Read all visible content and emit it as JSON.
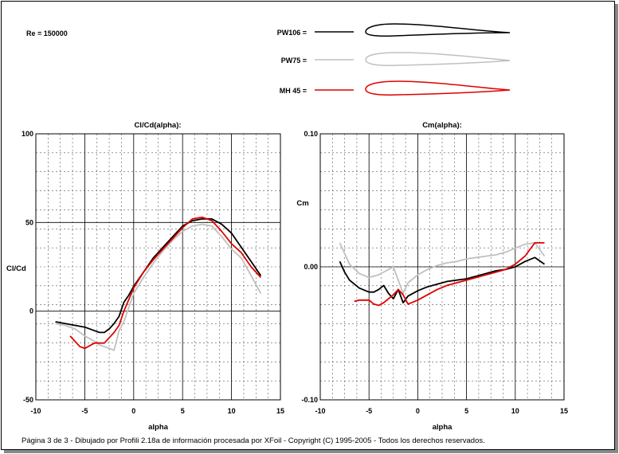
{
  "re_label": "Re = 150000",
  "legend": [
    {
      "label": "PW106 =",
      "color": "#000000"
    },
    {
      "label": "PW75 =",
      "color": "#c0c0c0"
    },
    {
      "label": "MH 45 =",
      "color": "#e00000"
    }
  ],
  "footer": "Página 3 de 3 - Dibujado por Profili 2.18a de información procesada por XFoil - Copyright (C) 1995-2005 - Todos los derechos reservados.",
  "chart_data": [
    {
      "type": "line",
      "title": "Cl/Cd(alpha):",
      "xlabel": "alpha",
      "ylabel": "Cl/Cd",
      "xlim": [
        -10,
        15
      ],
      "ylim": [
        -50,
        100
      ],
      "xticks": [
        "-10",
        "-5",
        "0",
        "5",
        "10",
        "15"
      ],
      "yticks": [
        "100",
        "50",
        "0",
        "-50"
      ],
      "grid": true,
      "series": [
        {
          "color": "#000000",
          "x": [
            -8,
            -7,
            -6,
            -5,
            -4,
            -3.5,
            -3,
            -2.5,
            -2,
            -1.5,
            -1,
            -0.5,
            0,
            1,
            2,
            3,
            4,
            5,
            6,
            7,
            8,
            9,
            10,
            11,
            12,
            13
          ],
          "y": [
            -6,
            -7,
            -8,
            -9,
            -11,
            -12,
            -12,
            -10,
            -7,
            -3,
            5,
            9,
            14,
            22,
            30,
            36,
            42,
            48,
            51,
            52,
            52,
            49,
            44,
            36,
            28,
            20
          ]
        },
        {
          "color": "#c0c0c0",
          "x": [
            -8,
            -7,
            -6,
            -5,
            -4,
            -3.5,
            -3,
            -2.5,
            -2,
            -1.5,
            -1,
            0,
            1,
            2,
            3,
            4,
            5,
            6,
            7,
            8,
            9,
            10,
            11,
            12,
            13
          ],
          "y": [
            -7,
            -8,
            -10,
            -14,
            -17,
            -19,
            -20,
            -21,
            -22,
            -11,
            -6,
            10,
            19,
            27,
            34,
            40,
            45,
            48,
            49,
            48,
            42,
            35,
            30,
            20,
            10
          ]
        },
        {
          "color": "#e00000",
          "x": [
            -6.5,
            -6,
            -5.5,
            -5,
            -4,
            -3,
            -2,
            -1.5,
            -1,
            0,
            1,
            2,
            3,
            4,
            5,
            6,
            7,
            8,
            9,
            10,
            11,
            12,
            13
          ],
          "y": [
            -14,
            -17,
            -20,
            -21,
            -18,
            -18,
            -12,
            -8,
            0,
            13,
            22,
            29,
            35,
            41,
            47,
            52,
            53,
            51,
            45,
            38,
            33,
            25,
            19
          ]
        }
      ]
    },
    {
      "type": "line",
      "title": "Cm(alpha):",
      "xlabel": "alpha",
      "ylabel": "Cm",
      "xlim": [
        -10,
        15
      ],
      "ylim": [
        -0.1,
        0.1
      ],
      "xticks": [
        "-10",
        "-5",
        "0",
        "5",
        "10",
        "15"
      ],
      "yticks": [
        "0.10",
        "0.00",
        "-0.10"
      ],
      "grid": true,
      "series": [
        {
          "color": "#000000",
          "x": [
            -8,
            -7.5,
            -7,
            -6,
            -5,
            -4.5,
            -4,
            -3.5,
            -3,
            -2.5,
            -2,
            -1.5,
            -1,
            0,
            1,
            2,
            3,
            4,
            5,
            6,
            7,
            8,
            9,
            10,
            11,
            12,
            13
          ],
          "y": [
            0.004,
            -0.004,
            -0.01,
            -0.016,
            -0.019,
            -0.019,
            -0.017,
            -0.014,
            -0.02,
            -0.024,
            -0.017,
            -0.027,
            -0.022,
            -0.018,
            -0.015,
            -0.013,
            -0.011,
            -0.01,
            -0.009,
            -0.007,
            -0.005,
            -0.003,
            -0.002,
            0.0,
            0.004,
            0.007,
            0.002
          ]
        },
        {
          "color": "#c0c0c0",
          "x": [
            -8,
            -7.5,
            -7,
            -6,
            -5,
            -4,
            -3,
            -2.5,
            -2,
            -1.5,
            -1,
            0,
            1,
            2,
            3,
            4,
            5,
            6,
            7,
            8,
            9,
            10,
            11,
            12,
            13
          ],
          "y": [
            0.018,
            0.01,
            0.002,
            -0.005,
            -0.008,
            -0.006,
            -0.002,
            0.0,
            -0.01,
            -0.02,
            -0.012,
            -0.006,
            -0.002,
            0.001,
            0.003,
            0.004,
            0.006,
            0.007,
            0.008,
            0.009,
            0.011,
            0.014,
            0.017,
            0.018,
            0.008
          ]
        },
        {
          "color": "#e00000",
          "x": [
            -6.5,
            -6,
            -5,
            -4.5,
            -4,
            -3.5,
            -3,
            -2.5,
            -2,
            -1.5,
            -1,
            0,
            1,
            2,
            3,
            4,
            5,
            6,
            7,
            8,
            9,
            10,
            11,
            12,
            13
          ],
          "y": [
            -0.026,
            -0.025,
            -0.025,
            -0.028,
            -0.029,
            -0.027,
            -0.024,
            -0.021,
            -0.017,
            -0.021,
            -0.028,
            -0.025,
            -0.021,
            -0.017,
            -0.014,
            -0.012,
            -0.01,
            -0.008,
            -0.006,
            -0.004,
            -0.002,
            0.002,
            0.008,
            0.018,
            0.018
          ]
        }
      ]
    }
  ]
}
